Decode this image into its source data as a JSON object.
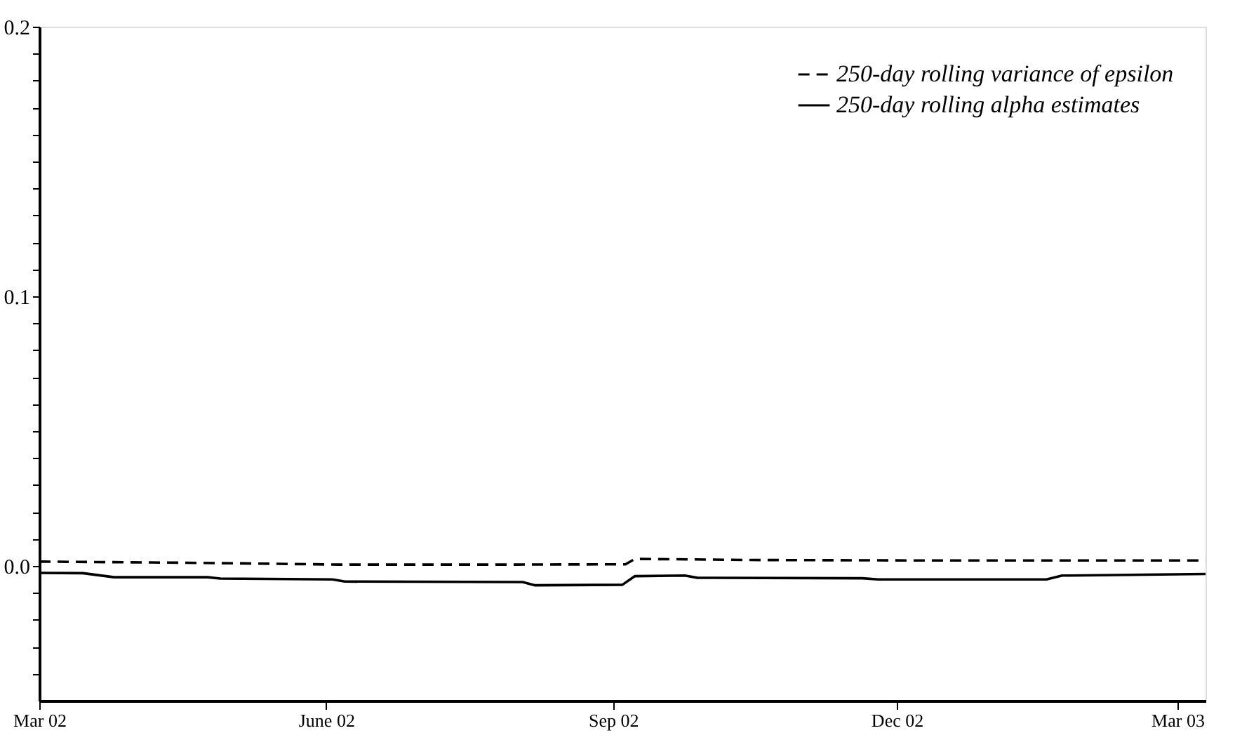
{
  "chart_data": {
    "type": "line",
    "xlim": [
      "2002-03-01",
      "2003-03-10"
    ],
    "xticks": [
      {
        "value": "2002-03-01",
        "label": "Mar 02"
      },
      {
        "value": "2002-06-01",
        "label": "June 02"
      },
      {
        "value": "2002-09-01",
        "label": "Sep 02"
      },
      {
        "value": "2002-12-01",
        "label": "Dec 02"
      },
      {
        "value": "2003-03-01",
        "label": "Mar 03"
      }
    ],
    "ylim": [
      -0.05,
      0.2
    ],
    "yticks": [
      {
        "value": -0.04,
        "label": null
      },
      {
        "value": -0.03,
        "label": null
      },
      {
        "value": -0.02,
        "label": null
      },
      {
        "value": -0.01,
        "label": null
      },
      {
        "value": 0,
        "label": "0.0"
      },
      {
        "value": 0.01,
        "label": null
      },
      {
        "value": 0.02,
        "label": null
      },
      {
        "value": 0.03,
        "label": null
      },
      {
        "value": 0.04,
        "label": null
      },
      {
        "value": 0.05,
        "label": null
      },
      {
        "value": 0.06,
        "label": null
      },
      {
        "value": 0.07,
        "label": null
      },
      {
        "value": 0.08,
        "label": null
      },
      {
        "value": 0.09,
        "label": null
      },
      {
        "value": 0.1,
        "label": "0.1"
      },
      {
        "value": 0.11,
        "label": null
      },
      {
        "value": 0.12,
        "label": null
      },
      {
        "value": 0.13,
        "label": null
      },
      {
        "value": 0.14,
        "label": null
      },
      {
        "value": 0.15,
        "label": null
      },
      {
        "value": 0.16,
        "label": null
      },
      {
        "value": 0.17,
        "label": null
      },
      {
        "value": 0.18,
        "label": null
      },
      {
        "value": 0.19,
        "label": null
      },
      {
        "value": 0.2,
        "label": "0.2"
      }
    ],
    "grid": false,
    "legend": "top right",
    "series": [
      {
        "name": "250-day rolling variance of epsilon",
        "color": "#000000",
        "line_style": "dashed",
        "x": [
          "2002-03-01",
          "2002-04-15",
          "2002-06-05",
          "2002-08-01",
          "2002-09-05",
          "2002-09-08",
          "2002-10-15",
          "2002-12-15",
          "2003-03-10"
        ],
        "values": [
          0.0016,
          0.0012,
          0.0005,
          0.0005,
          0.0006,
          0.0026,
          0.0022,
          0.002,
          0.002
        ]
      },
      {
        "name": "250-day rolling alpha estimates",
        "color": "#000000",
        "line_style": "solid",
        "x": [
          "2002-03-01",
          "2002-03-15",
          "2002-03-25",
          "2002-04-24",
          "2002-04-28",
          "2002-06-03",
          "2002-06-07",
          "2002-08-03",
          "2002-08-07",
          "2002-09-04",
          "2002-09-08",
          "2002-09-24",
          "2002-09-28",
          "2002-11-20",
          "2002-11-25",
          "2003-01-18",
          "2003-01-23",
          "2003-03-10"
        ],
        "values": [
          -0.0026,
          -0.0027,
          -0.0042,
          -0.0042,
          -0.0047,
          -0.005,
          -0.0058,
          -0.006,
          -0.0072,
          -0.007,
          -0.0038,
          -0.0036,
          -0.0044,
          -0.0046,
          -0.005,
          -0.005,
          -0.0036,
          -0.003
        ]
      }
    ]
  }
}
